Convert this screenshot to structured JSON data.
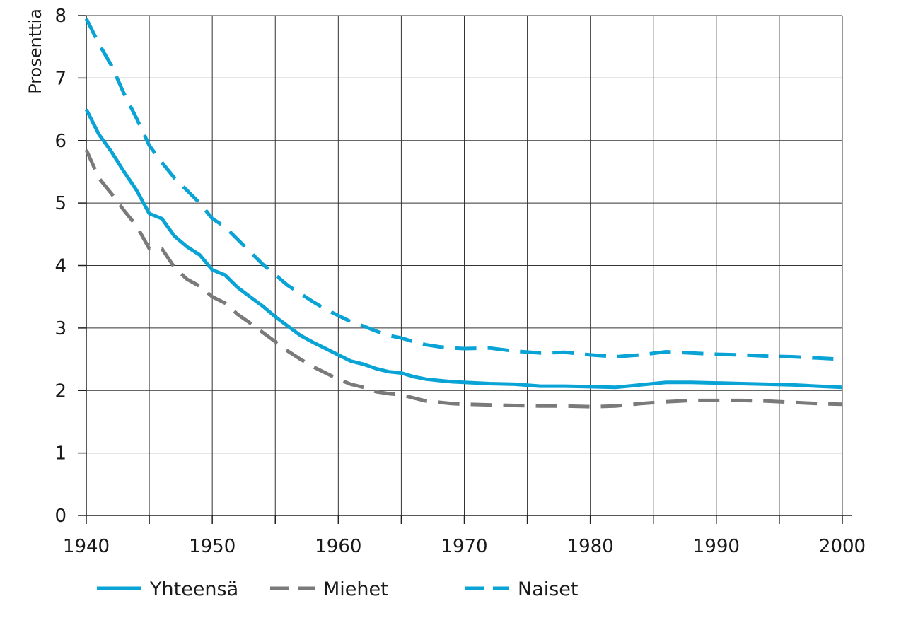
{
  "chart_data": {
    "type": "line",
    "title": "",
    "xlabel": "",
    "ylabel": "Prosenttia",
    "xlim": [
      1940,
      2000
    ],
    "ylim": [
      0,
      8
    ],
    "x_ticks": [
      1940,
      1950,
      1960,
      1970,
      1980,
      1990,
      2000
    ],
    "y_ticks": [
      0,
      1,
      2,
      3,
      4,
      5,
      6,
      7,
      8
    ],
    "grid": true,
    "legend_position": "bottom",
    "series": [
      {
        "name": "Yhteensä",
        "color": "#0aa3d6",
        "style": "solid",
        "points": [
          [
            1940,
            6.5
          ],
          [
            1941,
            6.1
          ],
          [
            1942,
            5.82
          ],
          [
            1943,
            5.5
          ],
          [
            1944,
            5.2
          ],
          [
            1945,
            4.83
          ],
          [
            1946,
            4.75
          ],
          [
            1947,
            4.47
          ],
          [
            1948,
            4.3
          ],
          [
            1949,
            4.17
          ],
          [
            1950,
            3.93
          ],
          [
            1951,
            3.85
          ],
          [
            1952,
            3.65
          ],
          [
            1953,
            3.5
          ],
          [
            1954,
            3.35
          ],
          [
            1955,
            3.18
          ],
          [
            1956,
            3.03
          ],
          [
            1957,
            2.88
          ],
          [
            1958,
            2.77
          ],
          [
            1959,
            2.67
          ],
          [
            1960,
            2.57
          ],
          [
            1961,
            2.47
          ],
          [
            1962,
            2.42
          ],
          [
            1963,
            2.35
          ],
          [
            1964,
            2.3
          ],
          [
            1965,
            2.28
          ],
          [
            1966,
            2.22
          ],
          [
            1967,
            2.18
          ],
          [
            1968,
            2.16
          ],
          [
            1969,
            2.14
          ],
          [
            1970,
            2.13
          ],
          [
            1972,
            2.11
          ],
          [
            1974,
            2.1
          ],
          [
            1976,
            2.07
          ],
          [
            1978,
            2.07
          ],
          [
            1980,
            2.06
          ],
          [
            1982,
            2.05
          ],
          [
            1984,
            2.09
          ],
          [
            1986,
            2.13
          ],
          [
            1988,
            2.13
          ],
          [
            1990,
            2.12
          ],
          [
            1992,
            2.11
          ],
          [
            1994,
            2.1
          ],
          [
            1996,
            2.09
          ],
          [
            1998,
            2.07
          ],
          [
            2000,
            2.05
          ]
        ]
      },
      {
        "name": "Miehet",
        "color": "#7a7a7a",
        "style": "dashed",
        "points": [
          [
            1940,
            5.85
          ],
          [
            1941,
            5.4
          ],
          [
            1942,
            5.15
          ],
          [
            1943,
            4.88
          ],
          [
            1944,
            4.63
          ],
          [
            1945,
            4.27
          ],
          [
            1946,
            4.27
          ],
          [
            1947,
            3.97
          ],
          [
            1948,
            3.78
          ],
          [
            1949,
            3.67
          ],
          [
            1950,
            3.5
          ],
          [
            1951,
            3.4
          ],
          [
            1952,
            3.22
          ],
          [
            1953,
            3.08
          ],
          [
            1954,
            2.93
          ],
          [
            1955,
            2.78
          ],
          [
            1956,
            2.63
          ],
          [
            1957,
            2.5
          ],
          [
            1958,
            2.38
          ],
          [
            1959,
            2.28
          ],
          [
            1960,
            2.18
          ],
          [
            1961,
            2.1
          ],
          [
            1962,
            2.05
          ],
          [
            1963,
            1.98
          ],
          [
            1964,
            1.95
          ],
          [
            1965,
            1.93
          ],
          [
            1966,
            1.88
          ],
          [
            1967,
            1.83
          ],
          [
            1968,
            1.81
          ],
          [
            1969,
            1.79
          ],
          [
            1970,
            1.78
          ],
          [
            1972,
            1.77
          ],
          [
            1974,
            1.76
          ],
          [
            1976,
            1.75
          ],
          [
            1978,
            1.75
          ],
          [
            1980,
            1.74
          ],
          [
            1982,
            1.75
          ],
          [
            1984,
            1.79
          ],
          [
            1986,
            1.82
          ],
          [
            1988,
            1.84
          ],
          [
            1990,
            1.84
          ],
          [
            1992,
            1.84
          ],
          [
            1994,
            1.83
          ],
          [
            1996,
            1.81
          ],
          [
            1998,
            1.79
          ],
          [
            2000,
            1.78
          ]
        ]
      },
      {
        "name": "Naiset",
        "color": "#0aa3d6",
        "style": "dashed",
        "points": [
          [
            1940,
            7.95
          ],
          [
            1941,
            7.55
          ],
          [
            1942,
            7.2
          ],
          [
            1943,
            6.75
          ],
          [
            1944,
            6.35
          ],
          [
            1945,
            5.92
          ],
          [
            1946,
            5.65
          ],
          [
            1947,
            5.4
          ],
          [
            1948,
            5.2
          ],
          [
            1949,
            5.0
          ],
          [
            1950,
            4.75
          ],
          [
            1951,
            4.62
          ],
          [
            1952,
            4.42
          ],
          [
            1953,
            4.22
          ],
          [
            1954,
            4.02
          ],
          [
            1955,
            3.85
          ],
          [
            1956,
            3.68
          ],
          [
            1957,
            3.55
          ],
          [
            1958,
            3.42
          ],
          [
            1959,
            3.3
          ],
          [
            1960,
            3.2
          ],
          [
            1961,
            3.1
          ],
          [
            1962,
            3.03
          ],
          [
            1963,
            2.95
          ],
          [
            1964,
            2.88
          ],
          [
            1965,
            2.84
          ],
          [
            1966,
            2.78
          ],
          [
            1967,
            2.73
          ],
          [
            1968,
            2.7
          ],
          [
            1969,
            2.68
          ],
          [
            1970,
            2.67
          ],
          [
            1972,
            2.68
          ],
          [
            1974,
            2.63
          ],
          [
            1976,
            2.6
          ],
          [
            1978,
            2.61
          ],
          [
            1980,
            2.57
          ],
          [
            1982,
            2.54
          ],
          [
            1984,
            2.57
          ],
          [
            1986,
            2.62
          ],
          [
            1988,
            2.6
          ],
          [
            1990,
            2.58
          ],
          [
            1992,
            2.57
          ],
          [
            1994,
            2.55
          ],
          [
            1996,
            2.54
          ],
          [
            1998,
            2.52
          ],
          [
            2000,
            2.5
          ]
        ]
      }
    ]
  }
}
